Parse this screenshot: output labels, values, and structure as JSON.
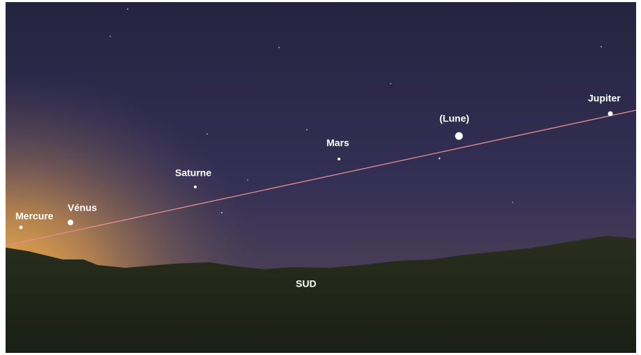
{
  "labels": {
    "bodies": [
      "Mercure",
      "Vénus",
      "Saturne",
      "Mars",
      "(Lune)",
      "Jupiter"
    ],
    "direction": "SUD"
  }
}
